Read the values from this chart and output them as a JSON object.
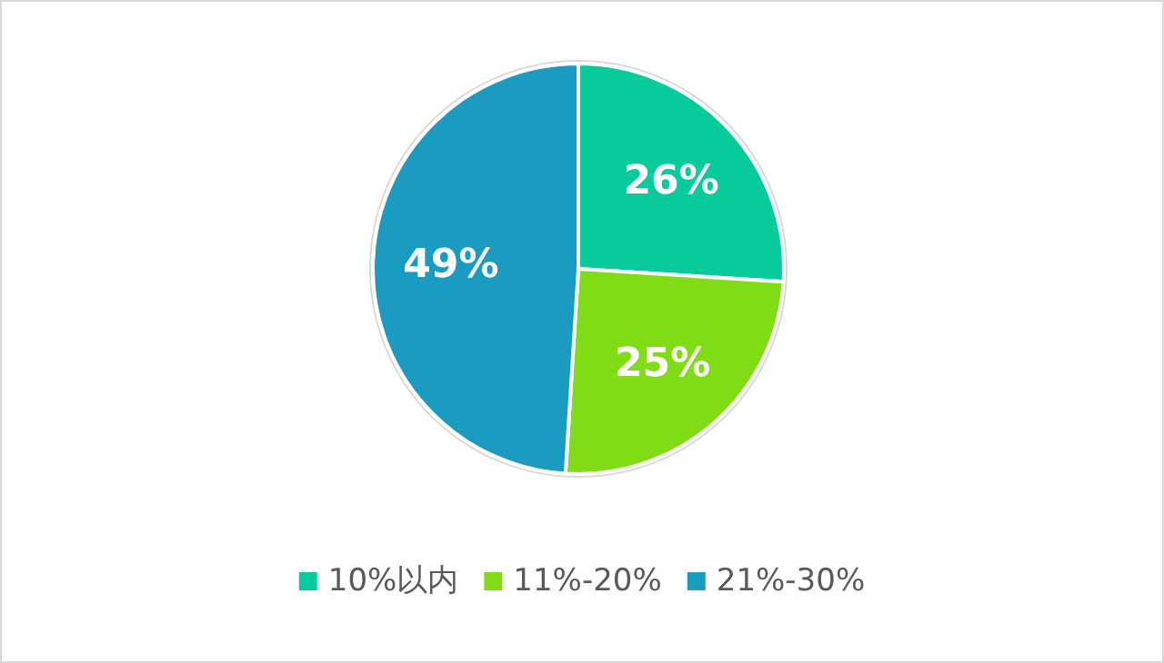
{
  "chart_data": {
    "type": "pie",
    "categories": [
      "10%以内",
      "11%-20%",
      "21%-30%"
    ],
    "values": [
      26,
      25,
      49
    ],
    "colors": [
      "#08cb9c",
      "#80dc14",
      "#1a9cc2"
    ],
    "value_labels": [
      "26%",
      "25%",
      "49%"
    ],
    "legend": "bottom"
  }
}
